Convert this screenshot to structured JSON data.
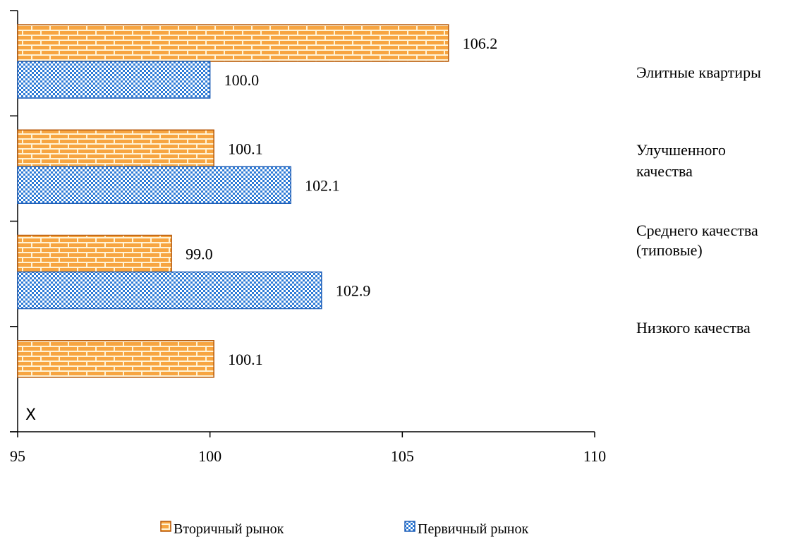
{
  "chart_data": {
    "type": "bar",
    "orientation": "horizontal",
    "categories": [
      "Элитные квартиры",
      "Улучшенного качества",
      "Среднего качества (типовые)",
      "Низкого качества"
    ],
    "category_label_lines": [
      [
        "Элитные квартиры"
      ],
      [
        "Улучшенного",
        "качества"
      ],
      [
        "Среднего качества",
        "(типовые)"
      ],
      [
        "Низкого качества"
      ]
    ],
    "series": [
      {
        "name": "Вторичный рынок",
        "values": [
          106.2,
          100.1,
          99.0,
          100.1
        ],
        "labels": [
          "106.2",
          "100.1",
          "99.0",
          "100.1"
        ]
      },
      {
        "name": "Первичный рынок",
        "values": [
          100.0,
          102.1,
          102.9,
          null
        ],
        "labels": [
          "100.0",
          "102.1",
          "102.9",
          ""
        ]
      }
    ],
    "xlim": [
      95,
      110
    ],
    "x_ticks": [
      "95",
      "100",
      "105",
      "110"
    ],
    "missing_marker": "X",
    "legend_position": "bottom",
    "grid": false,
    "colors": {
      "secondary_fill": "#F7A541",
      "secondary_brick": "#FFF3D6",
      "secondary_stroke": "#B75A0B",
      "primary_fill": "#2E7BD6",
      "primary_check": "#FFFFFF",
      "primary_stroke": "#1F5FB8"
    }
  }
}
